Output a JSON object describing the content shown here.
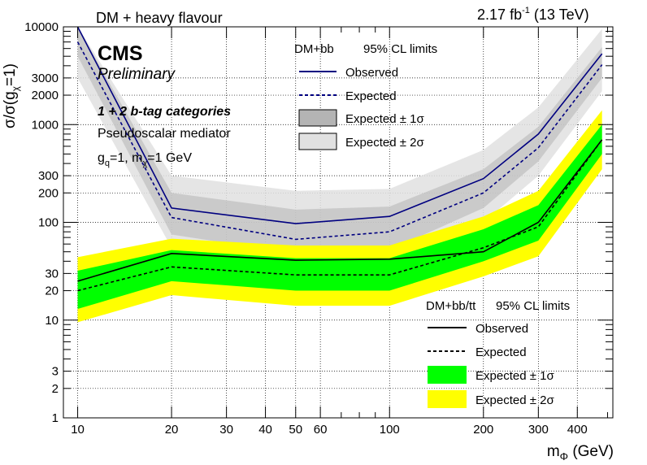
{
  "header": {
    "left_title": "DM + heavy flavour",
    "lumi": "2.17",
    "lumi_unit": "fb",
    "lumi_sup": "-1",
    "energy": "(13 TeV)"
  },
  "labels": {
    "cms": "CMS",
    "preliminary": "Preliminary",
    "categories": "1 + 2 b-tag categories",
    "mediator": "Pseudoscalar mediator",
    "couplings_g": "g",
    "couplings_g_sub": "q",
    "couplings_g_val": "=1,",
    "couplings_m": "m",
    "couplings_m_sub": "χ",
    "couplings_m_val": "=1 GeV"
  },
  "axes": {
    "y_title_main": "σ/σ(g",
    "y_title_sub": "χ",
    "y_title_end": "=1)",
    "x_title_main": "m",
    "x_title_sub": "Φ",
    "x_title_end": " (GeV)"
  },
  "legend_bb": {
    "header_left": "DM+bb",
    "header_right": "95% CL limits",
    "entries": [
      "Observed",
      "Expected",
      "Expected ± 1σ",
      "Expected ± 2σ"
    ]
  },
  "legend_bbtt": {
    "header_left": "DM+bb/tt",
    "header_right": "95% CL limits",
    "entries": [
      "Observed",
      "Expected",
      "Expected ± 1σ",
      "Expected ± 2σ"
    ]
  },
  "colors": {
    "navy": "#000080",
    "green": "#00ff00",
    "yellow": "#ffff00",
    "gray_1sigma": "#b4b4b4",
    "gray_2sigma": "#e1e1e1"
  },
  "chart_data": {
    "type": "line",
    "x_scale": "log",
    "y_scale": "log",
    "xlim": [
      9,
      520
    ],
    "ylim": [
      1,
      10000
    ],
    "x_ticks": [
      10,
      20,
      30,
      40,
      50,
      60,
      100,
      200,
      300,
      400
    ],
    "y_ticks": [
      1,
      2,
      3,
      10,
      20,
      30,
      100,
      200,
      300,
      1000,
      2000,
      3000,
      10000
    ],
    "grid": true,
    "series": [
      {
        "name": "DM+bb Expected ± 2σ",
        "x": [
          10,
          20,
          50,
          100,
          200,
          300,
          480
        ],
        "y_low": [
          3000,
          55,
          35,
          38,
          100,
          300,
          2200
        ],
        "y_high": [
          10000,
          300,
          210,
          220,
          550,
          1500,
          9500
        ]
      },
      {
        "name": "DM+bb Expected ± 1σ",
        "x": [
          10,
          20,
          50,
          100,
          200,
          300,
          480
        ],
        "y_low": [
          5000,
          75,
          48,
          52,
          140,
          420,
          3000
        ],
        "y_high": [
          10000,
          200,
          135,
          145,
          350,
          950,
          6200
        ]
      },
      {
        "name": "DM+bb/tt Expected ± 2σ",
        "x": [
          10,
          20,
          50,
          100,
          200,
          300,
          480
        ],
        "y_low": [
          9.5,
          18,
          14,
          14,
          28,
          45,
          350
        ],
        "y_high": [
          44,
          68,
          58,
          58,
          115,
          210,
          1400
        ]
      },
      {
        "name": "DM+bb/tt Expected ± 1σ",
        "x": [
          10,
          20,
          50,
          100,
          200,
          300,
          480
        ],
        "y_low": [
          13,
          25,
          20,
          20,
          40,
          65,
          500
        ],
        "y_high": [
          32,
          52,
          43,
          43,
          85,
          150,
          1000
        ]
      },
      {
        "name": "DM+bb Observed",
        "x": [
          10,
          20,
          50,
          100,
          200,
          300,
          480
        ],
        "y": [
          10000,
          140,
          97,
          115,
          280,
          800,
          5300
        ]
      },
      {
        "name": "DM+bb Expected",
        "x": [
          10,
          20,
          50,
          100,
          200,
          300,
          480
        ],
        "y": [
          7000,
          112,
          67,
          80,
          200,
          580,
          4100
        ]
      },
      {
        "name": "DM+bb/tt Observed",
        "x": [
          10,
          20,
          50,
          100,
          200,
          300,
          480
        ],
        "y": [
          25,
          48,
          41,
          42,
          50,
          100,
          700
        ]
      },
      {
        "name": "DM+bb/tt Expected",
        "x": [
          10,
          20,
          50,
          100,
          200,
          300,
          480
        ],
        "y": [
          20,
          35,
          29,
          29,
          55,
          90,
          700
        ]
      }
    ]
  }
}
